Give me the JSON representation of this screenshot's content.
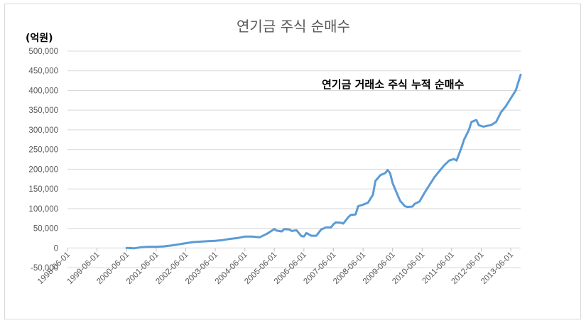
{
  "chart_data": {
    "type": "line",
    "title": "연기금 주식 순매수",
    "unit_label": "(억원)",
    "annotation": "연기금 거래소 주식 누적 순매수",
    "xlabel": "",
    "ylabel": "",
    "ylim": [
      -50000,
      500000
    ],
    "yticks": [
      "-50,000",
      "0",
      "50,000",
      "100,000",
      "150,000",
      "200,000",
      "250,000",
      "300,000",
      "350,000",
      "400,000",
      "450,000",
      "500,000"
    ],
    "ytick_values": [
      -50000,
      0,
      50000,
      100000,
      150000,
      200000,
      250000,
      300000,
      350000,
      400000,
      450000,
      500000
    ],
    "xlim": [
      "1998-06-01",
      "2013-10-01"
    ],
    "xticks": [
      "1998-06-01",
      "1999-06-01",
      "2000-06-01",
      "2001-06-01",
      "2002-06-01",
      "2003-06-01",
      "2004-06-01",
      "2005-06-01",
      "2006-06-01",
      "2007-06-01",
      "2008-06-01",
      "2009-06-01",
      "2010-06-01",
      "2011-06-01",
      "2012-06-01",
      "2013-06-01"
    ],
    "grid": "horizontal",
    "legend": "none",
    "line_color": "#5b9bd5",
    "series": [
      {
        "x": [
          "2000-06-01",
          "2000-09-01",
          "2000-12-01",
          "2001-03-01",
          "2001-06-01",
          "2001-09-01",
          "2001-12-01",
          "2002-03-01",
          "2002-06-01",
          "2002-09-01",
          "2002-12-01",
          "2003-03-01",
          "2003-06-01",
          "2003-09-01",
          "2003-12-01",
          "2004-03-01",
          "2004-06-01",
          "2004-09-01",
          "2004-12-01",
          "2005-03-01",
          "2005-06-01",
          "2005-07-01",
          "2005-09-01",
          "2005-10-01",
          "2005-12-01",
          "2006-01-01",
          "2006-03-01",
          "2006-05-01",
          "2006-06-01",
          "2006-07-01",
          "2006-09-01",
          "2006-11-01",
          "2007-01-01",
          "2007-03-01",
          "2007-05-01",
          "2007-06-01",
          "2007-07-01",
          "2007-09-01",
          "2007-10-01",
          "2007-12-01",
          "2008-01-01",
          "2008-03-01",
          "2008-04-01",
          "2008-06-01",
          "2008-08-01",
          "2008-10-01",
          "2008-11-01",
          "2009-01-01",
          "2009-03-01",
          "2009-04-01",
          "2009-05-01",
          "2009-06-01",
          "2009-07-01",
          "2009-09-01",
          "2009-11-01",
          "2009-12-01",
          "2010-02-01",
          "2010-03-01",
          "2010-05-01",
          "2010-07-01",
          "2010-09-01",
          "2010-11-01",
          "2011-01-01",
          "2011-03-01",
          "2011-05-01",
          "2011-07-01",
          "2011-08-01",
          "2011-10-01",
          "2011-11-01",
          "2012-01-01",
          "2012-02-01",
          "2012-04-01",
          "2012-05-01",
          "2012-07-01",
          "2012-08-01",
          "2012-10-01",
          "2012-12-01",
          "2013-02-01",
          "2013-04-01",
          "2013-06-01",
          "2013-08-01",
          "2013-10-01"
        ],
        "values": [
          0,
          -1000,
          2000,
          3000,
          3000,
          4000,
          6000,
          9000,
          12000,
          15000,
          16000,
          17000,
          18000,
          20000,
          23000,
          25000,
          29000,
          29000,
          27000,
          36000,
          48000,
          44000,
          42000,
          48000,
          47000,
          43000,
          45000,
          30000,
          29000,
          38000,
          31000,
          31000,
          47000,
          52000,
          52000,
          60000,
          65000,
          64000,
          62000,
          78000,
          84000,
          85000,
          106000,
          110000,
          115000,
          135000,
          170000,
          185000,
          190000,
          198000,
          190000,
          165000,
          150000,
          120000,
          106000,
          104000,
          105000,
          112000,
          118000,
          140000,
          160000,
          180000,
          195000,
          210000,
          222000,
          226000,
          222000,
          255000,
          275000,
          300000,
          320000,
          325000,
          312000,
          308000,
          310000,
          312000,
          320000,
          345000,
          360000,
          380000,
          400000,
          440000
        ]
      }
    ]
  }
}
